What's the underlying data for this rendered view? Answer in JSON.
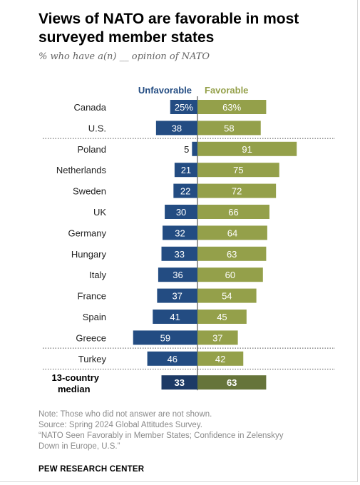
{
  "title": "Views of NATO are favorable in most surveyed member states",
  "subtitle": "% who have a(n) __ opinion of NATO",
  "chart_data": {
    "type": "bar",
    "subtype": "diverging",
    "legend": {
      "placement": "top",
      "unfavorable": "Unfavorable",
      "favorable": "Favorable"
    },
    "categories": [
      "Canada",
      "U.S.",
      "Poland",
      "Netherlands",
      "Sweden",
      "UK",
      "Germany",
      "Hungary",
      "Italy",
      "France",
      "Spain",
      "Greece",
      "Turkey"
    ],
    "series": [
      {
        "name": "Unfavorable",
        "color": "#234c82",
        "values": [
          25,
          38,
          5,
          21,
          22,
          30,
          32,
          33,
          36,
          37,
          41,
          59,
          46
        ]
      },
      {
        "name": "Favorable",
        "color": "#94a04a",
        "values": [
          63,
          58,
          91,
          75,
          72,
          66,
          64,
          63,
          60,
          54,
          45,
          37,
          42
        ]
      }
    ],
    "value_labels": {
      "unfavorable": [
        "25%",
        "38",
        "5",
        "21",
        "22",
        "30",
        "32",
        "33",
        "36",
        "37",
        "41",
        "59",
        "46"
      ],
      "favorable": [
        "63%",
        "58",
        "91",
        "75",
        "72",
        "66",
        "64",
        "63",
        "60",
        "54",
        "45",
        "37",
        "42"
      ]
    },
    "median": {
      "label_line1": "13-country",
      "label_line2": "median",
      "unfavorable": 33,
      "favorable": 63,
      "unfavorable_color": "#1d3a66",
      "favorable_color": "#66743a"
    },
    "group_separators_after": [
      "U.S.",
      "Greece",
      "Turkey"
    ],
    "xlim": [
      -60,
      95
    ]
  },
  "notes": [
    "Note: Those who did not answer are not shown.",
    "Source: Spring 2024 Global Attitudes Survey.",
    "“NATO Seen Favorably in Member States; Confidence in Zelenskyy",
    "Down in Europe, U.S.”"
  ],
  "source_brand": "PEW RESEARCH CENTER"
}
